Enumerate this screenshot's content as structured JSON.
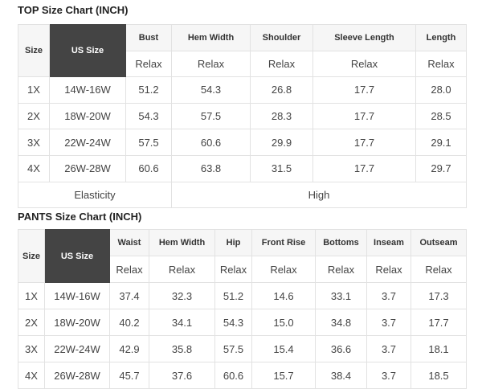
{
  "top": {
    "title": "TOP Size Chart (INCH)",
    "size_label": "Size",
    "us_size_label": "US Size",
    "columns": [
      "Bust",
      "Hem Width",
      "Shoulder",
      "Sleeve Length",
      "Length"
    ],
    "sub_label": "Relax",
    "rows": [
      [
        "1X",
        "14W-16W",
        "51.2",
        "54.3",
        "26.8",
        "17.7",
        "28.0"
      ],
      [
        "2X",
        "18W-20W",
        "54.3",
        "57.5",
        "28.3",
        "17.7",
        "28.5"
      ],
      [
        "3X",
        "22W-24W",
        "57.5",
        "60.6",
        "29.9",
        "17.7",
        "29.1"
      ],
      [
        "4X",
        "26W-28W",
        "60.6",
        "63.8",
        "31.5",
        "17.7",
        "29.7"
      ]
    ],
    "elasticity_label": "Elasticity",
    "elasticity_value": "High"
  },
  "pants": {
    "title": "PANTS Size Chart (INCH)",
    "size_label": "Size",
    "us_size_label": "US Size",
    "columns": [
      "Waist",
      "Hem Width",
      "Hip",
      "Front Rise",
      "Bottoms",
      "Inseam",
      "Outseam"
    ],
    "sub_label": "Relax",
    "rows": [
      [
        "1X",
        "14W-16W",
        "37.4",
        "32.3",
        "51.2",
        "14.6",
        "33.1",
        "3.7",
        "17.3"
      ],
      [
        "2X",
        "18W-20W",
        "40.2",
        "34.1",
        "54.3",
        "15.0",
        "34.8",
        "3.7",
        "17.7"
      ],
      [
        "3X",
        "22W-24W",
        "42.9",
        "35.8",
        "57.5",
        "15.4",
        "36.6",
        "3.7",
        "18.1"
      ],
      [
        "4X",
        "26W-28W",
        "45.7",
        "37.6",
        "60.6",
        "15.7",
        "38.4",
        "3.7",
        "18.5"
      ]
    ]
  }
}
